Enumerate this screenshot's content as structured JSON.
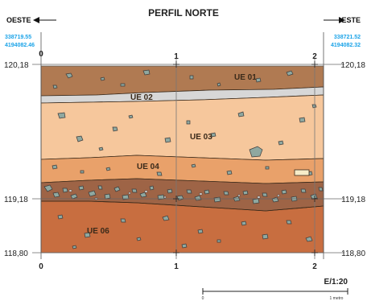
{
  "title": "PERFIL NORTE",
  "direction_left": "OESTE",
  "direction_right": "ESTE",
  "coord_left": {
    "x": "338719.55",
    "y": "4194082.46"
  },
  "coord_right": {
    "x": "338721.52",
    "y": "4194082.32"
  },
  "grid_labels": [
    "0",
    "1",
    "2"
  ],
  "elevation_top": "120,18",
  "elevation_mid": "119,18",
  "elevation_bottom": "118,80",
  "units": [
    {
      "label": "UE 01",
      "color": "#b07a52"
    },
    {
      "label": "UE 02",
      "color": "#d7d7d7"
    },
    {
      "label": "UE 03",
      "color": "#f6c79c"
    },
    {
      "label": "UE 04",
      "color": "#e9a16a"
    },
    {
      "label": "UE 06",
      "color": "#c86e40"
    }
  ],
  "scale": {
    "label": "E/1:20",
    "start": "0",
    "end": "1 metro"
  },
  "colors": {
    "stone": "#8fa8a0",
    "band": "#9e6446",
    "coord": "#1aa3e8"
  }
}
